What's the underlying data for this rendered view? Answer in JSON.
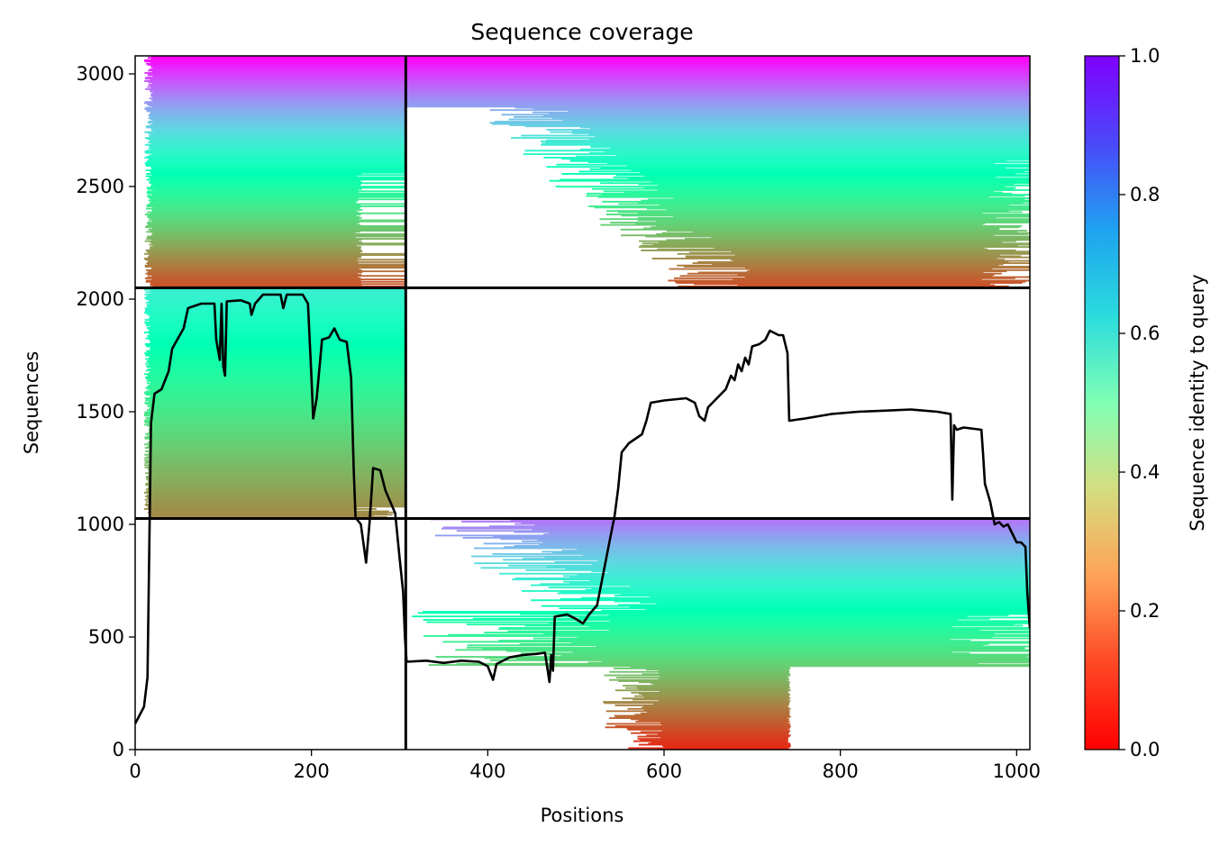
{
  "chart_data": {
    "type": "heatmap",
    "title": "Sequence coverage",
    "xlabel": "Positions",
    "ylabel": "Sequences",
    "xlim": [
      0,
      1015
    ],
    "ylim": [
      0,
      3080
    ],
    "x_ticks": [
      0,
      200,
      400,
      600,
      800,
      1000
    ],
    "y_ticks": [
      0,
      500,
      1000,
      1500,
      2000,
      2500,
      3000
    ],
    "colorbar": {
      "label": "Sequence identity to query",
      "colormap": "rainbow_r",
      "range": [
        0.0,
        1.0
      ],
      "ticks": [
        "0.0",
        "0.2",
        "0.4",
        "0.6",
        "0.8",
        "1.0"
      ]
    },
    "domain_boundaries": {
      "vertical_x": 307,
      "horizontal_y": [
        1026,
        2050
      ]
    },
    "blocks": [
      {
        "x_range": [
          0,
          307
        ],
        "seq_range": [
          2050,
          3080
        ],
        "identity_range": [
          0.1,
          1.0
        ],
        "coverage_end": 307
      },
      {
        "x_range": [
          307,
          1015
        ],
        "seq_range": [
          2050,
          3080
        ],
        "identity_range": [
          0.1,
          1.0
        ],
        "coverage_end": 1015
      },
      {
        "x_range": [
          0,
          307
        ],
        "seq_range": [
          1026,
          2050
        ],
        "identity_range": [
          0.18,
          0.62
        ],
        "coverage_end": 307
      },
      {
        "x_range": [
          307,
          1015
        ],
        "seq_range": [
          0,
          1026
        ],
        "identity_range": [
          0.05,
          0.85
        ],
        "coverage_end": 1015
      }
    ],
    "coverage_line": {
      "name": "coverage",
      "color": "#000000",
      "points": [
        [
          0,
          115
        ],
        [
          10,
          190
        ],
        [
          14,
          320
        ],
        [
          16,
          900
        ],
        [
          18,
          1450
        ],
        [
          22,
          1580
        ],
        [
          30,
          1600
        ],
        [
          38,
          1680
        ],
        [
          42,
          1780
        ],
        [
          55,
          1870
        ],
        [
          60,
          1960
        ],
        [
          75,
          1980
        ],
        [
          90,
          1980
        ],
        [
          92,
          1820
        ],
        [
          96,
          1730
        ],
        [
          98,
          1980
        ],
        [
          100,
          1700
        ],
        [
          102,
          1660
        ],
        [
          104,
          1990
        ],
        [
          120,
          1995
        ],
        [
          130,
          1980
        ],
        [
          132,
          1930
        ],
        [
          136,
          1980
        ],
        [
          145,
          2020
        ],
        [
          165,
          2020
        ],
        [
          168,
          1960
        ],
        [
          172,
          2020
        ],
        [
          190,
          2020
        ],
        [
          196,
          1980
        ],
        [
          200,
          1650
        ],
        [
          202,
          1470
        ],
        [
          206,
          1560
        ],
        [
          212,
          1820
        ],
        [
          220,
          1830
        ],
        [
          226,
          1870
        ],
        [
          232,
          1820
        ],
        [
          240,
          1810
        ],
        [
          245,
          1650
        ],
        [
          248,
          1240
        ],
        [
          250,
          1030
        ],
        [
          256,
          1000
        ],
        [
          262,
          830
        ],
        [
          266,
          1010
        ],
        [
          270,
          1250
        ],
        [
          278,
          1240
        ],
        [
          284,
          1150
        ],
        [
          295,
          1050
        ],
        [
          300,
          850
        ],
        [
          304,
          700
        ],
        [
          306,
          500
        ],
        [
          308,
          390
        ],
        [
          330,
          395
        ],
        [
          350,
          385
        ],
        [
          370,
          395
        ],
        [
          390,
          390
        ],
        [
          400,
          370
        ],
        [
          406,
          310
        ],
        [
          410,
          380
        ],
        [
          425,
          410
        ],
        [
          440,
          420
        ],
        [
          455,
          425
        ],
        [
          465,
          430
        ],
        [
          470,
          300
        ],
        [
          472,
          420
        ],
        [
          474,
          350
        ],
        [
          476,
          590
        ],
        [
          490,
          600
        ],
        [
          500,
          580
        ],
        [
          508,
          560
        ],
        [
          515,
          600
        ],
        [
          524,
          640
        ],
        [
          530,
          760
        ],
        [
          538,
          920
        ],
        [
          544,
          1040
        ],
        [
          548,
          1160
        ],
        [
          552,
          1320
        ],
        [
          560,
          1360
        ],
        [
          575,
          1400
        ],
        [
          580,
          1460
        ],
        [
          585,
          1540
        ],
        [
          600,
          1550
        ],
        [
          625,
          1560
        ],
        [
          635,
          1540
        ],
        [
          640,
          1480
        ],
        [
          646,
          1460
        ],
        [
          650,
          1520
        ],
        [
          660,
          1560
        ],
        [
          670,
          1600
        ],
        [
          676,
          1660
        ],
        [
          680,
          1640
        ],
        [
          684,
          1710
        ],
        [
          688,
          1680
        ],
        [
          692,
          1740
        ],
        [
          696,
          1710
        ],
        [
          700,
          1790
        ],
        [
          708,
          1800
        ],
        [
          715,
          1820
        ],
        [
          720,
          1860
        ],
        [
          730,
          1840
        ],
        [
          735,
          1840
        ],
        [
          740,
          1760
        ],
        [
          742,
          1460
        ],
        [
          760,
          1470
        ],
        [
          790,
          1490
        ],
        [
          820,
          1500
        ],
        [
          850,
          1505
        ],
        [
          880,
          1510
        ],
        [
          910,
          1500
        ],
        [
          925,
          1490
        ],
        [
          927,
          1110
        ],
        [
          929,
          1440
        ],
        [
          932,
          1420
        ],
        [
          940,
          1430
        ],
        [
          960,
          1420
        ],
        [
          962,
          1310
        ],
        [
          964,
          1180
        ],
        [
          970,
          1100
        ],
        [
          975,
          1000
        ],
        [
          980,
          1010
        ],
        [
          985,
          990
        ],
        [
          990,
          1000
        ],
        [
          995,
          960
        ],
        [
          1000,
          920
        ],
        [
          1005,
          920
        ],
        [
          1010,
          900
        ],
        [
          1012,
          700
        ],
        [
          1015,
          540
        ]
      ]
    }
  }
}
